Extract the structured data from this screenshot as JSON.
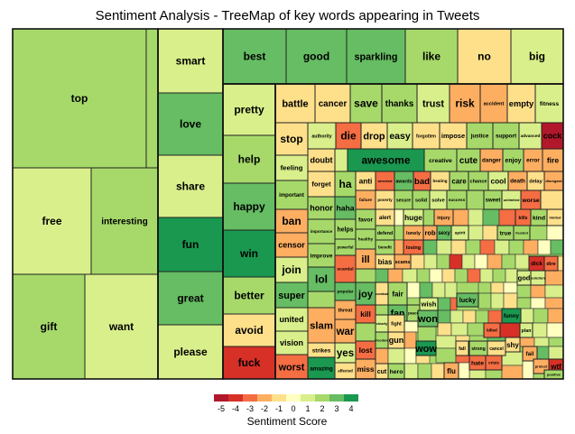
{
  "title": "Sentiment Analysis - TreeMap of key words appearing in Tweets",
  "legend": {
    "title": "Sentiment Score",
    "ticks": [
      "-5",
      "-4",
      "-3",
      "-2",
      "-1",
      "0",
      "1",
      "2",
      "3",
      "4"
    ],
    "colors": [
      "#b2182b",
      "#d73027",
      "#f46d43",
      "#fdae61",
      "#fee08b",
      "#ffffbf",
      "#d9ef8b",
      "#a6d96a",
      "#66bd63",
      "#1a9850"
    ]
  },
  "chart_data": {
    "type": "treemap",
    "color_metric": "Sentiment Score",
    "color_range": [
      -5,
      4
    ],
    "items": [
      {
        "word": "top",
        "score": 2
      },
      {
        "word": "free",
        "score": 1
      },
      {
        "word": "interesting",
        "score": 2
      },
      {
        "word": "gift",
        "score": 2
      },
      {
        "word": "want",
        "score": 1
      },
      {
        "word": "smart",
        "score": 1
      },
      {
        "word": "love",
        "score": 3
      },
      {
        "word": "share",
        "score": 1
      },
      {
        "word": "fun",
        "score": 4
      },
      {
        "word": "great",
        "score": 3
      },
      {
        "word": "please",
        "score": 1
      },
      {
        "word": "best",
        "score": 3
      },
      {
        "word": "good",
        "score": 3
      },
      {
        "word": "sparkling",
        "score": 3
      },
      {
        "word": "like",
        "score": 2
      },
      {
        "word": "no",
        "score": -1
      },
      {
        "word": "big",
        "score": 1
      },
      {
        "word": "pretty",
        "score": 1
      },
      {
        "word": "help",
        "score": 2
      },
      {
        "word": "happy",
        "score": 3
      },
      {
        "word": "win",
        "score": 4
      },
      {
        "word": "better",
        "score": 2
      },
      {
        "word": "avoid",
        "score": -1
      },
      {
        "word": "fuck",
        "score": -4
      },
      {
        "word": "battle",
        "score": -1
      },
      {
        "word": "cancer",
        "score": -1
      },
      {
        "word": "save",
        "score": 2
      },
      {
        "word": "thanks",
        "score": 2
      },
      {
        "word": "trust",
        "score": 1
      },
      {
        "word": "risk",
        "score": -2
      },
      {
        "word": "accident",
        "score": -2
      },
      {
        "word": "empty",
        "score": -1
      },
      {
        "word": "fitness",
        "score": 1
      },
      {
        "word": "stop",
        "score": -1
      },
      {
        "word": "authority",
        "score": 1
      },
      {
        "word": "die",
        "score": -3
      },
      {
        "word": "drop",
        "score": -1
      },
      {
        "word": "easy",
        "score": 1
      },
      {
        "word": "forgotten",
        "score": -1
      },
      {
        "word": "impose",
        "score": -1
      },
      {
        "word": "justice",
        "score": 2
      },
      {
        "word": "support",
        "score": 2
      },
      {
        "word": "advanced",
        "score": 1
      },
      {
        "word": "cock",
        "score": -5
      },
      {
        "word": "feeling",
        "score": 1
      },
      {
        "word": "doubt",
        "score": -1
      },
      {
        "word": "awesome",
        "score": 4
      },
      {
        "word": "creative",
        "score": 2
      },
      {
        "word": "cute",
        "score": 2
      },
      {
        "word": "danger",
        "score": -2
      },
      {
        "word": "enjoy",
        "score": 2
      },
      {
        "word": "error",
        "score": -2
      },
      {
        "word": "fire",
        "score": -2
      },
      {
        "word": "important",
        "score": 2
      },
      {
        "word": "forget",
        "score": -1
      },
      {
        "word": "ha",
        "score": 2
      },
      {
        "word": "anti",
        "score": -1
      },
      {
        "word": "arrested",
        "score": -3
      },
      {
        "word": "awards",
        "score": 3
      },
      {
        "word": "bad",
        "score": -3
      },
      {
        "word": "beating",
        "score": -1
      },
      {
        "word": "care",
        "score": 2
      },
      {
        "word": "chance",
        "score": 2
      },
      {
        "word": "cool",
        "score": 1
      },
      {
        "word": "death",
        "score": -2
      },
      {
        "word": "delay",
        "score": -1
      },
      {
        "word": "disregard",
        "score": -2
      },
      {
        "word": "honor",
        "score": 2
      },
      {
        "word": "haha",
        "score": 3
      },
      {
        "word": "failure",
        "score": -2
      },
      {
        "word": "poverty",
        "score": -1
      },
      {
        "word": "secure",
        "score": 2
      },
      {
        "word": "solid",
        "score": 2
      },
      {
        "word": "solve",
        "score": 1
      },
      {
        "word": "success",
        "score": 2
      },
      {
        "word": "sweet",
        "score": 2
      },
      {
        "word": "unlimited",
        "score": 1
      },
      {
        "word": "worse",
        "score": -3
      },
      {
        "word": "ban",
        "score": -2
      },
      {
        "word": "helps",
        "score": 2
      },
      {
        "word": "favor",
        "score": 2
      },
      {
        "word": "alert",
        "score": -1
      },
      {
        "word": "huge",
        "score": 1
      },
      {
        "word": "injury",
        "score": -2
      },
      {
        "word": "kills",
        "score": -3
      },
      {
        "word": "kind",
        "score": 2
      },
      {
        "word": "limited",
        "score": -1
      },
      {
        "word": "importance",
        "score": 2
      },
      {
        "word": "healthy",
        "score": 2
      },
      {
        "word": "defend",
        "score": 2
      },
      {
        "word": "lonely",
        "score": -2
      },
      {
        "word": "rob",
        "score": -2
      },
      {
        "word": "sexy",
        "score": 3
      },
      {
        "word": "spirit",
        "score": 1
      },
      {
        "word": "true",
        "score": 2
      },
      {
        "word": "trusted",
        "score": 2
      },
      {
        "word": "censor",
        "score": -2
      },
      {
        "word": "powerful",
        "score": 2
      },
      {
        "word": "benefit",
        "score": 2
      },
      {
        "word": "losing",
        "score": -3
      },
      {
        "word": "improve",
        "score": 2
      },
      {
        "word": "ill",
        "score": -2
      },
      {
        "word": "scams",
        "score": -2
      },
      {
        "word": "join",
        "score": 1
      },
      {
        "word": "scandal",
        "score": -3
      },
      {
        "word": "bias",
        "score": -1
      },
      {
        "word": "lol",
        "score": 3
      },
      {
        "word": "popular",
        "score": 3
      },
      {
        "word": "super",
        "score": 3
      },
      {
        "word": "joy",
        "score": 3
      },
      {
        "word": "combat",
        "score": -1
      },
      {
        "word": "fair",
        "score": 2
      },
      {
        "word": "threat",
        "score": -2
      },
      {
        "word": "kill",
        "score": -3
      },
      {
        "word": "fan",
        "score": 3
      },
      {
        "word": "peace",
        "score": 2
      },
      {
        "word": "wish",
        "score": 1
      },
      {
        "word": "united",
        "score": 1
      },
      {
        "word": "slam",
        "score": -2
      },
      {
        "word": "legal",
        "score": 1
      },
      {
        "word": "clearly",
        "score": 1
      },
      {
        "word": "fight",
        "score": -1
      },
      {
        "word": "won",
        "score": 3
      },
      {
        "word": "war",
        "score": -2
      },
      {
        "word": "freedom",
        "score": 2
      },
      {
        "word": "gun",
        "score": -1
      },
      {
        "word": "vision",
        "score": 1
      },
      {
        "word": "strikes",
        "score": -1
      },
      {
        "word": "yes",
        "score": 1
      },
      {
        "word": "lost",
        "score": -3
      },
      {
        "word": "wow",
        "score": 4
      },
      {
        "word": "worst",
        "score": -3
      },
      {
        "word": "amazing",
        "score": 4
      },
      {
        "word": "affected",
        "score": -1
      },
      {
        "word": "miss",
        "score": -2
      },
      {
        "word": "cut",
        "score": -1
      },
      {
        "word": "hero",
        "score": 2
      },
      {
        "word": "fall",
        "score": -1
      },
      {
        "word": "flu",
        "score": -2
      },
      {
        "word": "strong",
        "score": 2
      },
      {
        "word": "cancel",
        "score": -1
      },
      {
        "word": "hate",
        "score": -3
      },
      {
        "word": "crisis",
        "score": -3
      },
      {
        "word": "dick",
        "score": -4
      },
      {
        "word": "dire",
        "score": -3
      },
      {
        "word": "god",
        "score": 1
      },
      {
        "word": "solution",
        "score": 1
      },
      {
        "word": "lucky",
        "score": 3
      },
      {
        "word": "funny",
        "score": 4
      },
      {
        "word": "killed",
        "score": -3
      },
      {
        "word": "plan",
        "score": 1
      },
      {
        "word": "shy",
        "score": -1
      },
      {
        "word": "fail",
        "score": -2
      },
      {
        "word": "protest",
        "score": -2
      },
      {
        "word": "wtf",
        "score": -4
      },
      {
        "word": "positive",
        "score": 2
      }
    ]
  }
}
